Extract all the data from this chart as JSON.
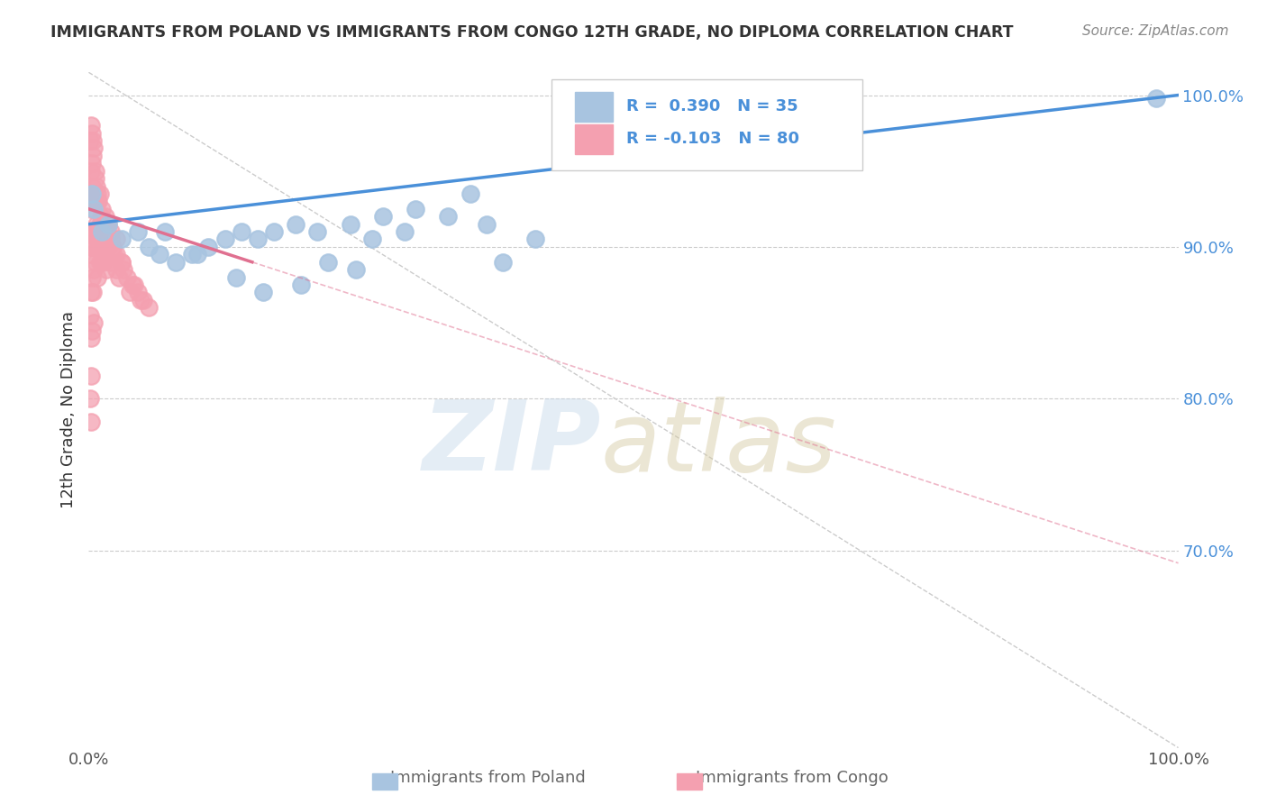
{
  "title": "IMMIGRANTS FROM POLAND VS IMMIGRANTS FROM CONGO 12TH GRADE, NO DIPLOMA CORRELATION CHART",
  "source": "Source: ZipAtlas.com",
  "ylabel": "12th Grade, No Diploma",
  "legend_labels": [
    "Immigrants from Poland",
    "Immigrants from Congo"
  ],
  "poland_R": 0.39,
  "poland_N": 35,
  "congo_R": -0.103,
  "congo_N": 80,
  "poland_color": "#a8c4e0",
  "congo_color": "#f4a0b0",
  "poland_line_color": "#4a90d9",
  "congo_line_color": "#e07090",
  "background_color": "#ffffff",
  "poland_x": [
    0.3,
    0.5,
    1.2,
    1.8,
    3.0,
    4.5,
    5.5,
    6.5,
    8.0,
    9.5,
    11.0,
    12.5,
    14.0,
    15.5,
    17.0,
    19.0,
    21.0,
    24.0,
    27.0,
    30.0,
    33.0,
    36.5,
    24.5,
    19.5,
    22.0,
    26.0,
    29.0,
    16.0,
    13.5,
    10.0,
    7.0,
    35.0,
    38.0,
    41.0,
    98.0
  ],
  "poland_y": [
    93.5,
    92.5,
    91.0,
    91.5,
    90.5,
    91.0,
    90.0,
    89.5,
    89.0,
    89.5,
    90.0,
    90.5,
    91.0,
    90.5,
    91.0,
    91.5,
    91.0,
    91.5,
    92.0,
    92.5,
    92.0,
    91.5,
    88.5,
    87.5,
    89.0,
    90.5,
    91.0,
    87.0,
    88.0,
    89.5,
    91.0,
    93.5,
    89.0,
    90.5,
    99.8
  ],
  "congo_x": [
    0.1,
    0.1,
    0.1,
    0.1,
    0.1,
    0.2,
    0.2,
    0.2,
    0.2,
    0.2,
    0.2,
    0.2,
    0.2,
    0.3,
    0.3,
    0.3,
    0.3,
    0.3,
    0.4,
    0.4,
    0.4,
    0.4,
    0.5,
    0.5,
    0.5,
    0.5,
    0.5,
    0.6,
    0.6,
    0.7,
    0.7,
    0.8,
    0.8,
    0.8,
    0.9,
    0.9,
    1.0,
    1.0,
    1.0,
    1.1,
    1.2,
    1.3,
    1.4,
    1.5,
    1.5,
    1.6,
    1.7,
    1.8,
    2.0,
    2.0,
    2.2,
    2.5,
    2.5,
    3.0,
    3.5,
    4.0,
    4.5,
    5.0,
    1.2,
    1.8,
    2.3,
    3.2,
    4.2,
    0.4,
    0.6,
    0.8,
    1.5,
    2.0,
    2.5,
    3.0,
    0.3,
    0.5,
    0.7,
    1.0,
    1.3,
    1.6,
    2.8,
    3.8,
    4.8,
    5.5
  ],
  "congo_y": [
    97.0,
    93.5,
    90.0,
    85.5,
    80.0,
    98.0,
    95.0,
    92.5,
    89.5,
    87.0,
    84.0,
    81.5,
    78.5,
    97.5,
    94.0,
    91.0,
    88.0,
    84.5,
    97.0,
    93.5,
    90.0,
    87.0,
    96.5,
    93.5,
    91.0,
    88.5,
    85.0,
    95.0,
    89.0,
    94.0,
    90.5,
    93.5,
    91.0,
    88.0,
    93.0,
    90.0,
    93.5,
    91.5,
    89.0,
    92.0,
    92.5,
    91.5,
    91.0,
    92.0,
    89.5,
    91.0,
    90.5,
    91.5,
    91.0,
    89.0,
    90.0,
    90.5,
    88.5,
    89.0,
    88.0,
    87.5,
    87.0,
    86.5,
    91.0,
    90.0,
    89.5,
    88.5,
    87.5,
    96.0,
    94.5,
    93.0,
    91.5,
    90.5,
    89.5,
    89.0,
    95.5,
    93.0,
    91.5,
    90.0,
    89.0,
    88.5,
    88.0,
    87.0,
    86.5,
    86.0
  ],
  "xmin": 0.0,
  "xmax": 100.0,
  "ymin": 57.0,
  "ymax": 101.5,
  "right_yticks": [
    70.0,
    80.0,
    90.0,
    100.0
  ],
  "right_ytick_labels": [
    "70.0%",
    "80.0%",
    "90.0%",
    "100.0%"
  ],
  "poland_line_x0": 0.0,
  "poland_line_y0": 91.5,
  "poland_line_x1": 100.0,
  "poland_line_y1": 100.0,
  "congo_line_x0": 0.0,
  "congo_line_y0": 92.5,
  "congo_line_x1": 15.0,
  "congo_line_y1": 89.0
}
